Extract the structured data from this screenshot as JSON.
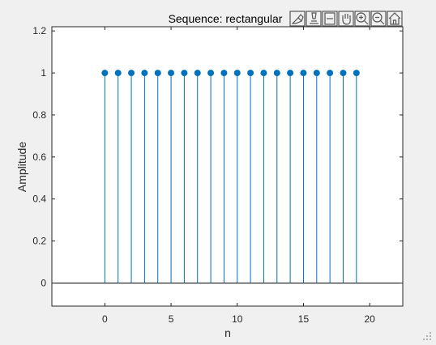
{
  "chart_data": {
    "type": "stem",
    "title": "Sequence: rectangular",
    "xlabel": "n",
    "ylabel": "Amplitude",
    "x": [
      0,
      1,
      2,
      3,
      4,
      5,
      6,
      7,
      8,
      9,
      10,
      11,
      12,
      13,
      14,
      15,
      16,
      17,
      18,
      19
    ],
    "y": [
      1,
      1,
      1,
      1,
      1,
      1,
      1,
      1,
      1,
      1,
      1,
      1,
      1,
      1,
      1,
      1,
      1,
      1,
      1,
      1
    ],
    "xlim": [
      -4,
      22.5
    ],
    "ylim": [
      -0.11,
      1.22
    ],
    "xticks": [
      0,
      5,
      10,
      15,
      20
    ],
    "xtick_labels": [
      "0",
      "5",
      "10",
      "15",
      "20"
    ],
    "yticks": [
      0,
      0.2,
      0.4,
      0.6,
      0.8,
      1,
      1.2
    ],
    "ytick_labels": [
      "0",
      "0.2",
      "0.4",
      "0.6",
      "0.8",
      "1",
      "1.2"
    ],
    "baseline": 0,
    "grid": false,
    "legend": "none",
    "series_color": "#0072bd"
  },
  "toolbar": {
    "icons": [
      "brush-icon",
      "data-tip-icon",
      "legend-icon",
      "pan-icon",
      "zoom-in-icon",
      "zoom-out-icon",
      "home-icon"
    ]
  },
  "colors": {
    "figure_background": "#f0f0f0",
    "axes_background": "#ffffff",
    "axes_color": "#262626"
  }
}
